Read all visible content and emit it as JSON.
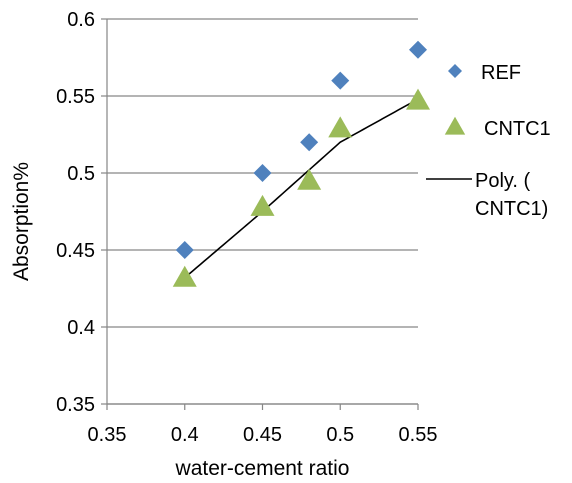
{
  "chart_data": {
    "type": "scatter",
    "title": "",
    "xlabel": "water-cement ratio",
    "ylabel": "Absorption%",
    "xlim": [
      0.35,
      0.55
    ],
    "ylim": [
      0.35,
      0.6
    ],
    "x_ticks": [
      "0.35",
      "0.4",
      "0.45",
      "0.5",
      "0.55"
    ],
    "y_ticks": [
      "0.35",
      "0.4",
      "0.45",
      "0.5",
      "0.55",
      "0.6"
    ],
    "grid": "horizontal",
    "legend_position": "right",
    "series": [
      {
        "name": "REF",
        "marker": "diamond",
        "color": "#4F81BD",
        "points": [
          [
            0.4,
            0.45
          ],
          [
            0.45,
            0.5
          ],
          [
            0.48,
            0.52
          ],
          [
            0.5,
            0.56
          ],
          [
            0.55,
            0.58
          ]
        ]
      },
      {
        "name": "CNTC1",
        "marker": "triangle",
        "color": "#9BBB59",
        "points": [
          [
            0.4,
            0.432
          ],
          [
            0.45,
            0.478
          ],
          [
            0.48,
            0.495
          ],
          [
            0.5,
            0.529
          ],
          [
            0.55,
            0.547
          ]
        ]
      }
    ],
    "trendline": {
      "name_lines": [
        "Poly. (",
        "CNTC1)"
      ],
      "type": "polynomial",
      "color": "#000000",
      "x_range": [
        0.4,
        0.55
      ],
      "points": [
        [
          0.4,
          0.432
        ],
        [
          0.45,
          0.475
        ],
        [
          0.48,
          0.502
        ],
        [
          0.5,
          0.52
        ],
        [
          0.55,
          0.548
        ]
      ]
    }
  }
}
